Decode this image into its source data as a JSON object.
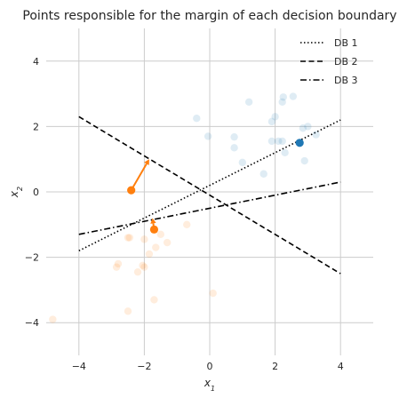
{
  "chart_data": {
    "type": "scatter",
    "title": "Points responsible for the margin of each decision boundary",
    "xlabel": "x1",
    "ylabel": "x2",
    "xlim": [
      -5,
      5
    ],
    "ylim": [
      -5,
      5
    ],
    "xticks": [
      -4,
      -2,
      0,
      2,
      4
    ],
    "yticks": [
      -4,
      -2,
      0,
      2,
      4
    ],
    "x_tick_labels": [
      "−4",
      "−2",
      "0",
      "2",
      "4"
    ],
    "y_tick_labels": [
      "−4",
      "−2",
      "0",
      "2",
      "4"
    ],
    "grid": true,
    "legend_position": "top-right",
    "colors": {
      "class_1": "#1f77b4",
      "class_2": "#ff7f0e",
      "grid": "#cccccc",
      "line": "#000000"
    },
    "faded_points": {
      "class_1": [
        [
          -0.4,
          2.25
        ],
        [
          1.2,
          2.75
        ],
        [
          2.25,
          2.9
        ],
        [
          2.55,
          2.92
        ],
        [
          2.22,
          2.75
        ],
        [
          2.0,
          2.3
        ],
        [
          1.9,
          2.15
        ],
        [
          2.85,
          1.95
        ],
        [
          3.0,
          2.0
        ],
        [
          3.25,
          1.75
        ],
        [
          -0.05,
          1.7
        ],
        [
          0.75,
          1.68
        ],
        [
          0.75,
          1.35
        ],
        [
          1.9,
          1.55
        ],
        [
          2.1,
          1.55
        ],
        [
          2.22,
          1.55
        ],
        [
          2.3,
          1.2
        ],
        [
          2.9,
          0.95
        ],
        [
          1.0,
          0.9
        ],
        [
          1.65,
          0.55
        ]
      ],
      "class_2": [
        [
          -2.5,
          -1.4
        ],
        [
          -2.45,
          -1.4
        ],
        [
          -2.0,
          -1.45
        ],
        [
          -1.5,
          -1.3
        ],
        [
          -1.3,
          -1.55
        ],
        [
          -0.7,
          -1.0
        ],
        [
          -1.65,
          -1.7
        ],
        [
          -1.85,
          -1.9
        ],
        [
          -2.8,
          -2.2
        ],
        [
          -2.85,
          -2.3
        ],
        [
          -2.05,
          -2.25
        ],
        [
          -2.0,
          -2.3
        ],
        [
          -2.2,
          -2.45
        ],
        [
          -1.7,
          -3.3
        ],
        [
          -2.5,
          -3.65
        ],
        [
          0.1,
          -3.1
        ],
        [
          -4.8,
          -3.9
        ]
      ]
    },
    "highlighted_points": [
      {
        "class": "class_1",
        "x": 2.75,
        "y": 1.5
      },
      {
        "class": "class_2",
        "x": -2.4,
        "y": 0.05
      },
      {
        "class": "class_2",
        "x": -1.7,
        "y": -1.15
      }
    ],
    "arrows": [
      {
        "from": [
          -2.4,
          0.05
        ],
        "to": [
          -1.85,
          1.0
        ]
      },
      {
        "from": [
          -1.7,
          -1.15
        ],
        "to": [
          -1.75,
          -0.8
        ]
      }
    ],
    "series": [
      {
        "name": "DB 1",
        "style": "dotted",
        "x": [
          -4,
          4
        ],
        "y": [
          -1.8,
          2.2
        ]
      },
      {
        "name": "DB 2",
        "style": "dashed",
        "x": [
          -4,
          4
        ],
        "y": [
          2.3,
          -2.5
        ]
      },
      {
        "name": "DB 3",
        "style": "dashdot",
        "x": [
          -4,
          4
        ],
        "y": [
          -1.3,
          0.3
        ]
      }
    ]
  }
}
